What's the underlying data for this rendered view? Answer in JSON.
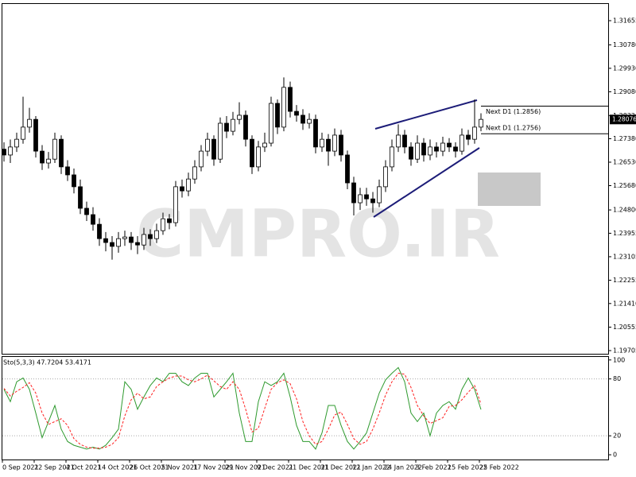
{
  "chart_data": [
    {
      "type": "candlestick",
      "watermark": "CMPRO.IR",
      "ylim": [
        1.1959,
        1.3226
      ],
      "yticks": [
        1.31655,
        {
          "value": 1.3078,
          "label": "1.30780"
        },
        {
          "value": 1.2993,
          "label": "1.29930"
        },
        {
          "value": 1.2908,
          "label": "1.29080"
        },
        {
          "value": 1.2822,
          "label": "1.28220"
        },
        {
          "value": 1.2738,
          "label": "1.27380"
        },
        {
          "value": 1.2653,
          "label": "1.26530"
        },
        {
          "value": 1.2568,
          "label": "1.25680"
        },
        {
          "value": 1.248,
          "label": "1.24800"
        },
        1.23955,
        1.23105,
        1.22255,
        {
          "value": 1.2141,
          "label": "1.21410"
        },
        1.20555,
        1.19705
      ],
      "last_price": 1.28076,
      "annotations": [
        {
          "text": "Next D1 (1.2856)",
          "value": 1.2856
        },
        {
          "text": "Next D1 (1.2756)",
          "value": 1.2756
        }
      ],
      "up_color": "#ffffff",
      "down_color": "#000000",
      "edge_color": "#000000",
      "open": [
        1.27,
        1.2679,
        1.2708,
        1.2736,
        1.278,
        1.2808,
        1.2693,
        1.265,
        1.2664,
        1.2736,
        1.2636,
        1.2607,
        1.2564,
        1.2486,
        1.2463,
        1.2428,
        1.2376,
        1.2362,
        1.2348,
        1.2376,
        1.2382,
        1.2362,
        1.2353,
        1.2391,
        1.2376,
        1.2405,
        1.2448,
        1.2434,
        1.2564,
        1.2549,
        1.2592,
        1.2636,
        1.2693,
        1.2736,
        1.2664,
        1.2794,
        1.2765,
        1.2808,
        1.2823,
        1.2736,
        1.2636,
        1.2708,
        1.2722,
        1.2866,
        1.278,
        1.2924,
        1.2837,
        1.2823,
        1.2794,
        1.2808,
        1.2708,
        1.2736,
        1.2693,
        1.2751,
        1.2679,
        1.2578,
        1.2506,
        1.2535,
        1.252,
        1.2506,
        1.2564,
        1.2636,
        1.2708,
        1.2751,
        1.2708,
        1.2664,
        1.2722,
        1.2679,
        1.2708,
        1.2693,
        1.2722,
        1.2708,
        1.2693,
        1.2751,
        1.2736,
        1.278
      ],
      "high": [
        1.2725,
        1.2735,
        1.276,
        1.289,
        1.285,
        1.282,
        1.2715,
        1.269,
        1.276,
        1.275,
        1.266,
        1.263,
        1.259,
        1.251,
        1.249,
        1.245,
        1.24,
        1.2385,
        1.24,
        1.2405,
        1.24,
        1.2385,
        1.2415,
        1.241,
        1.243,
        1.247,
        1.2465,
        1.2585,
        1.259,
        1.2615,
        1.266,
        1.2715,
        1.276,
        1.275,
        1.2815,
        1.282,
        1.2835,
        1.287,
        1.284,
        1.275,
        1.273,
        1.276,
        1.289,
        1.288,
        1.296,
        1.2945,
        1.286,
        1.2845,
        1.283,
        1.2825,
        1.276,
        1.2755,
        1.2775,
        1.277,
        1.2695,
        1.26,
        1.256,
        1.256,
        1.2545,
        1.259,
        1.266,
        1.2735,
        1.279,
        1.277,
        1.2725,
        1.275,
        1.274,
        1.2735,
        1.2725,
        1.2745,
        1.274,
        1.2725,
        1.2775,
        1.277,
        1.288,
        1.283
      ],
      "low": [
        1.2655,
        1.265,
        1.269,
        1.272,
        1.276,
        1.267,
        1.2625,
        1.263,
        1.265,
        1.261,
        1.2585,
        1.254,
        1.2465,
        1.244,
        1.2405,
        1.235,
        1.233,
        1.23,
        1.2325,
        1.235,
        1.2335,
        1.232,
        1.2335,
        1.235,
        1.236,
        1.239,
        1.241,
        1.242,
        1.2525,
        1.253,
        1.2575,
        1.262,
        1.2675,
        1.264,
        1.265,
        1.274,
        1.275,
        1.279,
        1.271,
        1.261,
        1.262,
        1.269,
        1.271,
        1.2755,
        1.2765,
        1.2815,
        1.28,
        1.277,
        1.2775,
        1.2685,
        1.269,
        1.264,
        1.2675,
        1.2655,
        1.2555,
        1.246,
        1.248,
        1.2495,
        1.247,
        1.249,
        1.2545,
        1.262,
        1.269,
        1.2685,
        1.264,
        1.265,
        1.2655,
        1.266,
        1.267,
        1.2675,
        1.269,
        1.267,
        1.268,
        1.2715,
        1.272,
        1.2765
      ],
      "close": [
        1.2679,
        1.2708,
        1.2736,
        1.278,
        1.2808,
        1.2693,
        1.265,
        1.2664,
        1.2736,
        1.2636,
        1.2607,
        1.2564,
        1.2486,
        1.2463,
        1.2428,
        1.2376,
        1.2362,
        1.2348,
        1.2376,
        1.2382,
        1.2362,
        1.2353,
        1.2391,
        1.2376,
        1.2405,
        1.2448,
        1.2434,
        1.2564,
        1.2549,
        1.2592,
        1.2636,
        1.2693,
        1.2736,
        1.2664,
        1.2794,
        1.2765,
        1.2808,
        1.2823,
        1.2736,
        1.2636,
        1.2708,
        1.2722,
        1.2866,
        1.278,
        1.2924,
        1.2837,
        1.2823,
        1.2794,
        1.2808,
        1.2708,
        1.2736,
        1.2693,
        1.2751,
        1.2679,
        1.2578,
        1.2506,
        1.2535,
        1.252,
        1.2506,
        1.2564,
        1.2636,
        1.2708,
        1.2751,
        1.2708,
        1.2664,
        1.2722,
        1.2679,
        1.2708,
        1.2693,
        1.2722,
        1.2708,
        1.2693,
        1.2751,
        1.2736,
        1.278,
        1.2808
      ]
    },
    {
      "type": "line",
      "title": "Sto(5,3,3) 47.7204 53.4171",
      "ylim": [
        -5,
        104
      ],
      "yticks": [
        100,
        80,
        20,
        0
      ],
      "levels": [
        80,
        20
      ],
      "categories": [
        "0 Sep 2021",
        null,
        null,
        null,
        null,
        "22 Sep 2021",
        null,
        null,
        null,
        null,
        "4 Oct 2021",
        null,
        null,
        null,
        null,
        "14 Oct 2021",
        null,
        null,
        null,
        null,
        "26 Oct 2021",
        null,
        null,
        null,
        null,
        "5 Nov 2021",
        null,
        null,
        null,
        null,
        "17 Nov 2021",
        null,
        null,
        null,
        null,
        "29 Nov 2021",
        null,
        null,
        null,
        null,
        "9 Dec 2021",
        null,
        null,
        null,
        null,
        "21 Dec 2021",
        null,
        null,
        null,
        null,
        "31 Dec 2021",
        null,
        null,
        null,
        null,
        "12 Jan 2022",
        null,
        null,
        null,
        null,
        "24 Jan 2022",
        null,
        null,
        null,
        null,
        "3 Feb 2022",
        null,
        null,
        null,
        null,
        "15 Feb 2022",
        null,
        null,
        null,
        null,
        "25 Feb 2022"
      ],
      "series": [
        {
          "color": "#2e9a2e",
          "dashed": false,
          "values": [
            69,
            56,
            77,
            81,
            69,
            44,
            18,
            35,
            52,
            27,
            14,
            10,
            8,
            6,
            8,
            6,
            10,
            18,
            27,
            77,
            69,
            48,
            61,
            73,
            81,
            77,
            86,
            86,
            77,
            73,
            81,
            86,
            86,
            61,
            69,
            77,
            86,
            44,
            14,
            14,
            56,
            77,
            73,
            77,
            86,
            61,
            31,
            14,
            14,
            6,
            23,
            52,
            52,
            31,
            14,
            6,
            14,
            23,
            44,
            65,
            79,
            86,
            92,
            77,
            44,
            35,
            44,
            20,
            44,
            52,
            56,
            48,
            69,
            81,
            69,
            47.7204
          ]
        },
        {
          "color": "#ff2020",
          "dashed": true,
          "values": [
            70,
            62,
            67,
            71,
            76,
            65,
            44,
            32,
            35,
            38,
            31,
            17,
            11,
            8,
            7,
            7,
            8,
            11,
            18,
            41,
            58,
            65,
            59,
            61,
            72,
            77,
            81,
            83,
            83,
            79,
            77,
            80,
            84,
            78,
            72,
            69,
            77,
            69,
            48,
            24,
            28,
            49,
            69,
            76,
            79,
            75,
            59,
            35,
            20,
            11,
            14,
            27,
            42,
            45,
            32,
            17,
            11,
            14,
            27,
            44,
            63,
            77,
            86,
            85,
            71,
            52,
            41,
            33,
            36,
            39,
            51,
            52,
            58,
            66,
            73,
            53.4171
          ]
        }
      ]
    }
  ]
}
